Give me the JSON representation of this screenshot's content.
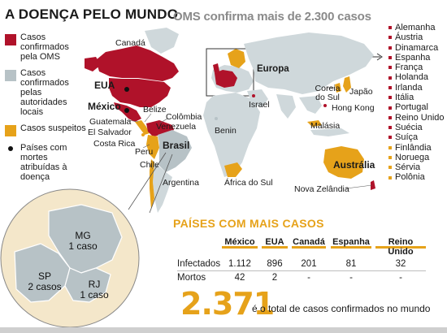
{
  "header": {
    "title": "A DOENÇA PELO MUNDO",
    "subtitle": "OMS confirma mais de 2.300 casos"
  },
  "legend": {
    "items": [
      {
        "label": "Casos confirmados pela OMS",
        "color": "#b0122a"
      },
      {
        "label": "Casos confirmados pelas autoridades locais",
        "color": "#b7c2c6"
      },
      {
        "label": "Casos suspeitos",
        "color": "#e6a21a"
      }
    ],
    "deaths_label": "Países com mortes atribuídas à doença"
  },
  "colors": {
    "confirmed_who": "#b0122a",
    "confirmed_local": "#b7c2c6",
    "suspected": "#e6a21a",
    "land": "#cfd8db",
    "accent": "#e6a21a"
  },
  "map_labels": {
    "canada": "Canadá",
    "eua": "EUA",
    "mexico": "México",
    "belize": "Belize",
    "guatemala": "Guatemala",
    "el_salvador": "El Salvador",
    "costa_rica": "Costa Rica",
    "colombia": "Colômbia",
    "venezuela": "Venezuela",
    "peru": "Peru",
    "brasil": "Brasil",
    "chile": "Chile",
    "argentina": "Argentina",
    "benin": "Benin",
    "israel": "Israel",
    "africa_do_sul": "África do Sul",
    "europa": "Europa",
    "coreia_do_sul": "Coreia do Sul",
    "japao": "Japão",
    "hong_kong": "Hong Kong",
    "malasia": "Malásia",
    "australia": "Austrália",
    "nova_zelandia": "Nova Zelândia"
  },
  "europe_countries": [
    "Alemanha",
    "Áustria",
    "Dinamarca",
    "Espanha",
    "França",
    "Holanda",
    "Irlanda",
    "Itália",
    "Portugal",
    "Reino Unido",
    "Suécia",
    "Suíça",
    "Finlândia",
    "Noruega",
    "Sérvia",
    "Polônia"
  ],
  "inset": {
    "mg": {
      "state": "MG",
      "cases": "1 caso"
    },
    "sp": {
      "state": "SP",
      "cases": "2 casos"
    },
    "rj": {
      "state": "RJ",
      "cases": "1 caso"
    }
  },
  "section": {
    "title": "PAÍSES COM MAIS CASOS"
  },
  "table": {
    "columns": [
      "México",
      "EUA",
      "Canadá",
      "Espanha",
      "Reino Unido"
    ],
    "rows": [
      {
        "label": "Infectados",
        "values": [
          "1.112",
          "896",
          "201",
          "81",
          "32"
        ]
      },
      {
        "label": "Mortos",
        "values": [
          "42",
          "2",
          "-",
          "-",
          "-"
        ]
      }
    ]
  },
  "total": {
    "value": "2.371",
    "caption": "é o total de casos confirmados no mundo"
  }
}
